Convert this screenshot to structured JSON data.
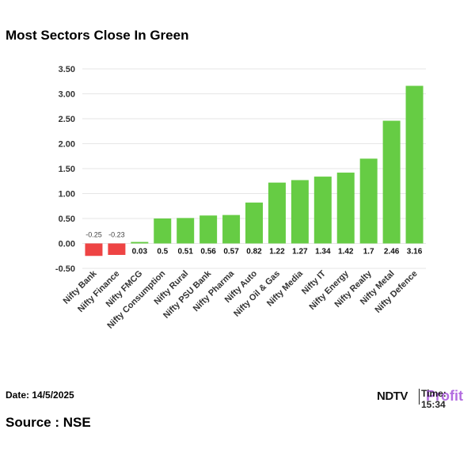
{
  "title": "Most Sectors Close In Green",
  "footer": {
    "date_text": "Date: 14/5/2025",
    "source_text": "Source : NSE",
    "time_text": "Time: 15:34"
  },
  "brand": {
    "ndtv": "NDTV",
    "profit": "Profit",
    "ndtv_icon": "ndtv-logo",
    "profit_color": "#b36ce0"
  },
  "colors": {
    "positive": "#66cc44",
    "negative": "#ee4444",
    "grid": "#e6e6e6"
  },
  "chart_data": {
    "type": "bar",
    "title": "Most Sectors Close In Green",
    "categories": [
      "Nifty Bank",
      "Nifty Finance",
      "Nifty FMCG",
      "Nifty Consumption",
      "Nifty Rural",
      "Nifty PSU Bank",
      "Nifty Pharma",
      "Nifty Auto",
      "Nifty Oil & Gas",
      "Nifty Media",
      "Nifty IT",
      "Nifty Energy",
      "Nifty Realty",
      "Nifty Metal",
      "Nifty Defence"
    ],
    "values": [
      -0.25,
      -0.23,
      0.03,
      0.5,
      0.51,
      0.56,
      0.57,
      0.82,
      1.22,
      1.27,
      1.34,
      1.42,
      1.7,
      2.46,
      3.16
    ],
    "value_labels": [
      "-0.25",
      "-0.23",
      "0.03",
      "0.5",
      "0.51",
      "0.56",
      "0.57",
      "0.82",
      "1.22",
      "1.27",
      "1.34",
      "1.42",
      "1.7",
      "2.46",
      "3.16"
    ],
    "yticks": [
      "-0.50",
      "0.00",
      "0.50",
      "1.00",
      "1.50",
      "2.00",
      "2.50",
      "3.00",
      "3.50"
    ],
    "ylim": [
      -0.5,
      3.5
    ],
    "xlabel": "",
    "ylabel": "",
    "grid": true
  }
}
